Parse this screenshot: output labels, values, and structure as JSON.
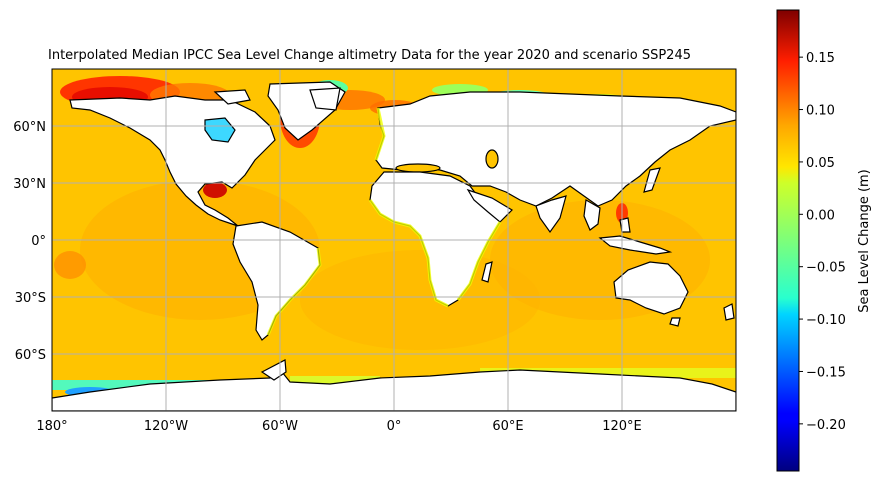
{
  "title": "Interpolated Median IPCC Sea Level Change altimetry Data for the year 2020 and scenario SSP245",
  "map": {
    "projection": "PlateCarree",
    "lon_range": [
      -180,
      180
    ],
    "lat_range": [
      -90,
      90
    ],
    "gridlines": true,
    "lat_labels": [
      "60°N",
      "30°N",
      "0°",
      "30°S",
      "60°S"
    ],
    "lon_labels": [
      "180°",
      "120°W",
      "60°W",
      "0°",
      "60°E",
      "120°E"
    ],
    "land_color": "#ffffff",
    "coastline_color": "#000000"
  },
  "colorbar": {
    "label": "Sea Level Change (m)",
    "colormap": "jet",
    "range": [
      -0.245,
      0.195
    ],
    "ticks": [
      "0.15",
      "0.10",
      "0.05",
      "0.00",
      "−0.05",
      "−0.10",
      "−0.15",
      "−0.20"
    ],
    "tick_values": [
      0.15,
      0.1,
      0.05,
      0.0,
      -0.05,
      -0.1,
      -0.15,
      -0.2
    ]
  },
  "field": {
    "typical_ocean_value_m": 0.06,
    "high_regions": [
      "North Pacific / Bering Sea",
      "Gulf of Mexico",
      "Greenland Sea",
      "Philippine Sea"
    ],
    "low_regions": [
      "Hudson Bay",
      "Antarctic coast",
      "Arctic Ocean"
    ]
  }
}
